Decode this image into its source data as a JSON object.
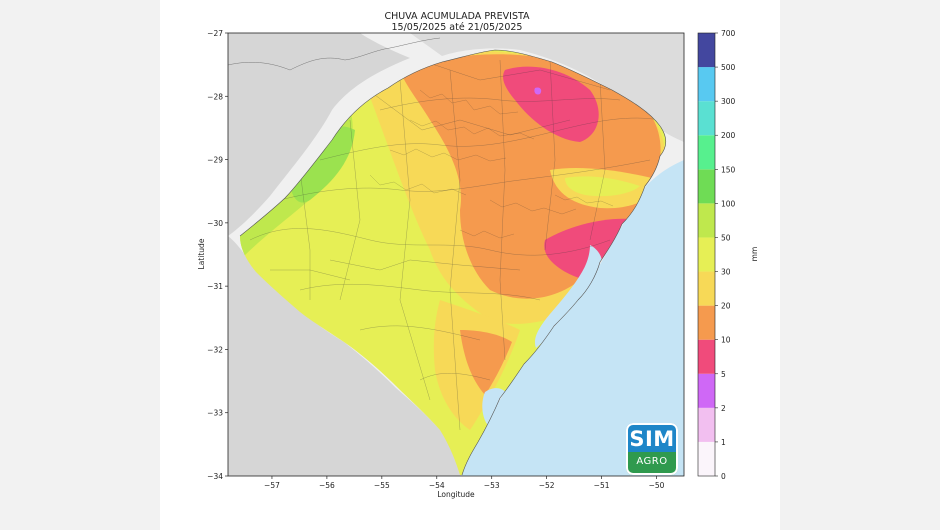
{
  "map": {
    "title": "CHUVA ACUMULADA PREVISTA",
    "subtitle": "15/05/2025 até 21/05/2025",
    "xlabel": "Longitude",
    "ylabel": "Latitude",
    "x_ticks": [
      "−57",
      "−56",
      "−55",
      "−54",
      "−53",
      "−52",
      "−51",
      "−50"
    ],
    "y_ticks": [
      "−27",
      "−28",
      "−29",
      "−30",
      "−31",
      "−32",
      "−33",
      "−34"
    ],
    "region": "Rio Grande do Sul",
    "colors": {
      "land_outside": "#d6d6d6",
      "ocean": "#c5e4f5",
      "background": "#f0f0f0"
    }
  },
  "colorbar": {
    "label": "mm",
    "ticks": [
      "0",
      "1",
      "2",
      "5",
      "10",
      "20",
      "30",
      "50",
      "100",
      "150",
      "200",
      "300",
      "500",
      "700"
    ],
    "colors": [
      "#fbf5fb",
      "#f2bff0",
      "#cf68f6",
      "#f04b7b",
      "#f59a4e",
      "#f7d957",
      "#e6ef55",
      "#bfe84d",
      "#6fdc55",
      "#57f08e",
      "#5ae0d2",
      "#58c9f1",
      "#4a77bd",
      "#43479f"
    ]
  },
  "logo": {
    "line1": "SIM",
    "line2": "AGRO"
  },
  "chart_data": {
    "type": "heatmap",
    "title": "CHUVA ACUMULADA PREVISTA",
    "subtitle": "15/05/2025 até 21/05/2025",
    "xlabel": "Longitude",
    "ylabel": "Latitude",
    "xlim": [
      -57.8,
      -49.5
    ],
    "ylim": [
      -34,
      -27
    ],
    "unit": "mm",
    "legend_position": "right colorbar"
  }
}
